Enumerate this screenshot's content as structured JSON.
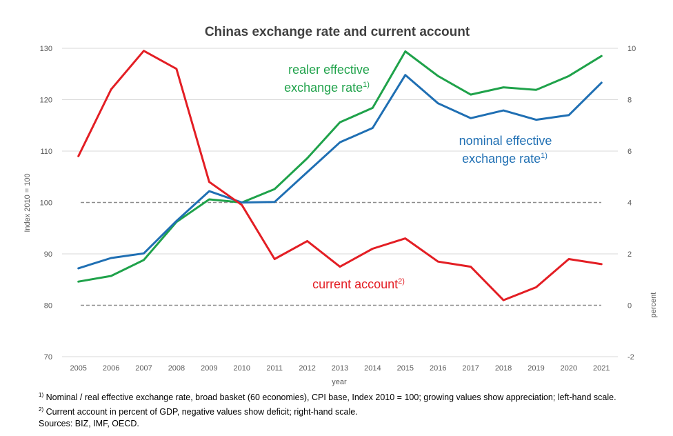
{
  "chart_data": {
    "type": "line",
    "title": "Chinas exchange rate and current account",
    "xlabel": "year",
    "ylabel_left": "Index 2010 = 100",
    "ylabel_right": "percent",
    "ylim_left": [
      70,
      130
    ],
    "ylim_right": [
      -2,
      10
    ],
    "yticks_left": [
      70,
      80,
      90,
      100,
      110,
      120,
      130
    ],
    "yticks_right": [
      -2,
      0,
      2,
      4,
      6,
      8,
      10
    ],
    "x": [
      "2005",
      "2006",
      "2007",
      "2008",
      "2009",
      "2010",
      "2011",
      "2012",
      "2013",
      "2014",
      "2015",
      "2016",
      "2017",
      "2018",
      "2019",
      "2020",
      "2021"
    ],
    "gridlines": "horizontal",
    "reference_lines_left": [
      100,
      80
    ],
    "series": [
      {
        "key": "real",
        "axis": "left",
        "color": "#1fa24a",
        "label_main": "realer effective",
        "label_line2": "exchange rate",
        "label_sup": "1)",
        "values": [
          84.6,
          85.7,
          88.8,
          96.2,
          100.6,
          100.0,
          102.6,
          108.6,
          115.6,
          118.4,
          129.4,
          124.6,
          121.0,
          122.4,
          121.9,
          124.6,
          128.5
        ]
      },
      {
        "key": "nominal",
        "axis": "left",
        "color": "#1f6fb3",
        "label_main": "nominal effective",
        "label_line2": "exchange rate",
        "label_sup": "1)",
        "values": [
          87.2,
          89.2,
          90.1,
          96.4,
          102.2,
          100.0,
          100.1,
          105.9,
          111.7,
          114.5,
          124.8,
          119.3,
          116.4,
          117.9,
          116.1,
          117.0,
          123.3
        ]
      },
      {
        "key": "current_account",
        "axis": "right",
        "color": "#e31e24",
        "label_main": "current account",
        "label_sup": "2)",
        "values": [
          5.8,
          8.4,
          9.9,
          9.2,
          4.8,
          3.9,
          1.8,
          2.5,
          1.5,
          2.2,
          2.6,
          1.7,
          1.5,
          0.2,
          0.7,
          1.8,
          1.6
        ]
      }
    ]
  },
  "footnotes": {
    "note1_sup": "1)",
    "note1_text": " Nominal / real effective exchange rate, broad basket (60 economies), CPI base, Index 2010 = 100;  growing values show appreciation; left-hand scale.",
    "note2_sup": "2)",
    "note2_text": " Current account in percent of GDP, negative values show deficit; right-hand scale.",
    "sources": "Sources: BIZ, IMF, OECD."
  }
}
